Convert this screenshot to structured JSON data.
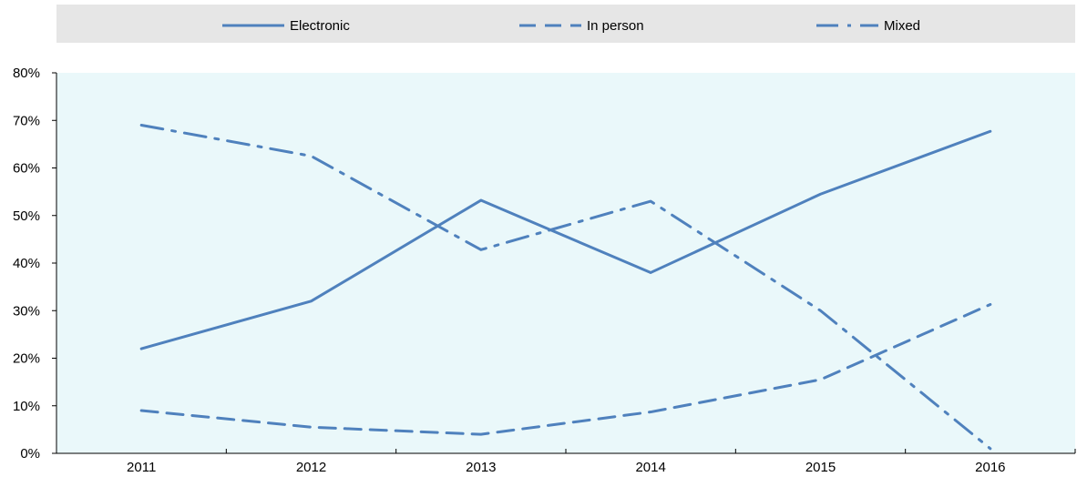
{
  "chart_data": {
    "type": "line",
    "categories": [
      "2011",
      "2012",
      "2013",
      "2014",
      "2015",
      "2016"
    ],
    "series": [
      {
        "name": "Electronic",
        "dash": "solid",
        "values": [
          22.0,
          32.0,
          53.2,
          38.0,
          54.5,
          67.7
        ]
      },
      {
        "name": "In person",
        "dash": "dashed",
        "values": [
          9.0,
          5.5,
          4.0,
          8.7,
          15.5,
          31.3
        ]
      },
      {
        "name": "Mixed",
        "dash": "dash-dot",
        "values": [
          69.0,
          62.5,
          42.8,
          53.0,
          30.0,
          1.0
        ]
      }
    ],
    "ylim": [
      0,
      80
    ],
    "yticks": [
      0,
      10,
      20,
      30,
      40,
      50,
      60,
      70,
      80
    ],
    "ytick_labels": [
      "0%",
      "10%",
      "20%",
      "30%",
      "40%",
      "50%",
      "60%",
      "70%",
      "80%"
    ],
    "xlabel": "",
    "ylabel": "",
    "legend_position": "top",
    "grid": false
  },
  "colors": {
    "line": "#4f81bd",
    "plot_background": "#eaf8fa",
    "legend_background": "#e6e6e6",
    "axis": "#000000"
  }
}
